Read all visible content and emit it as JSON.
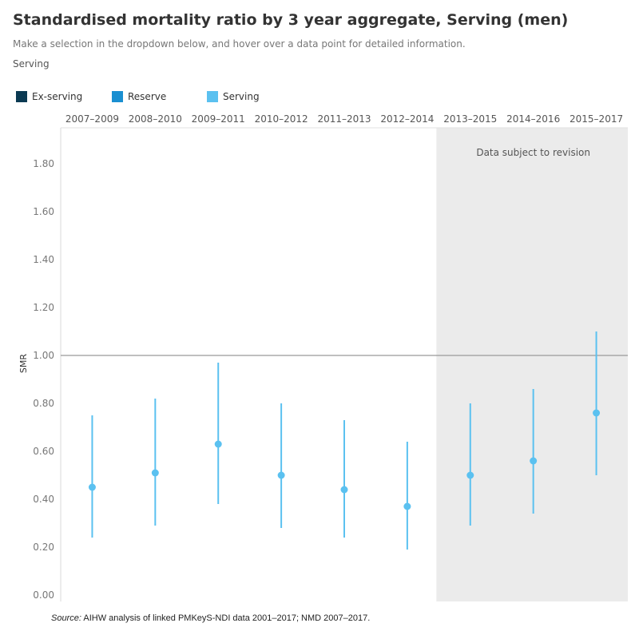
{
  "header": {
    "title": "Standardised mortality ratio by 3 year aggregate,  Serving (men)",
    "subtitle": "Make a selection in the dropdown below, and hover over a data point for detailed information.",
    "filter_value": "Serving"
  },
  "legend": {
    "items": [
      {
        "label": "Ex-serving",
        "color": "#0b3a52"
      },
      {
        "label": "Reserve",
        "color": "#1a8fd1"
      },
      {
        "label": "Serving",
        "color": "#5bc1f0"
      }
    ]
  },
  "source": {
    "prefix": "Source:",
    "text": " AIHW analysis of linked PMKeyS-NDI data 2001–2017; NMD 2007–2017."
  },
  "chart_data": {
    "type": "scatter",
    "categories": [
      "2007–2009",
      "2008–2010",
      "2009–2011",
      "2010–2012",
      "2011–2013",
      "2012–2014",
      "2013–2015",
      "2014–2016",
      "2015–2017"
    ],
    "series": [
      {
        "name": "Serving",
        "color": "#5bc1f0",
        "values": [
          0.45,
          0.51,
          0.63,
          0.5,
          0.44,
          0.37,
          0.5,
          0.56,
          0.76
        ],
        "lower": [
          0.24,
          0.29,
          0.38,
          0.28,
          0.24,
          0.19,
          0.29,
          0.34,
          0.5
        ],
        "upper": [
          0.75,
          0.82,
          0.97,
          0.8,
          0.73,
          0.64,
          0.8,
          0.86,
          1.1
        ]
      }
    ],
    "ylabel": "SMR",
    "ylim": [
      0,
      1.97
    ],
    "yticks": [
      0.0,
      0.2,
      0.4,
      0.6,
      0.8,
      1.0,
      1.2,
      1.4,
      1.6,
      1.8
    ],
    "ytick_labels": [
      "0.00",
      "0.20",
      "0.40",
      "0.60",
      "0.80",
      "1.00",
      "1.20",
      "1.40",
      "1.60",
      "1.80"
    ],
    "reference_line": 1.0,
    "reference_line_color": "#999999",
    "revision_band": {
      "from_category": "2013–2015",
      "to_category": "2015–2017",
      "label": "Data subject to revision",
      "color": "#ebebeb"
    }
  }
}
